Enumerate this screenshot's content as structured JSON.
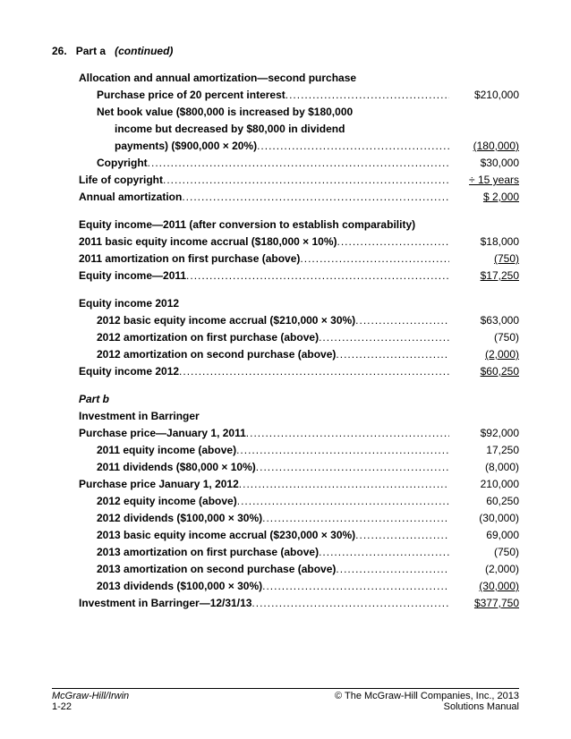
{
  "header": {
    "number": "26.",
    "title": "Part a",
    "cont": "(continued)"
  },
  "sec1": {
    "title": "Allocation and annual amortization—second purchase",
    "r1_label": "Purchase price of 20 percent interest",
    "r1_val": "$210,000",
    "r2a": "Net book value ($800,000 is increased by $180,000",
    "r2b": "income but decreased by $80,000 in dividend",
    "r2c": "payments) ($900,000 × 20%)",
    "r2_val": "(180,000)",
    "r3_label": "Copyright",
    "r3_val": "$30,000",
    "r4_label": "Life of copyright",
    "r4_val": "÷ 15 years",
    "r5_label": "Annual amortization",
    "r5_val": "$  2,000"
  },
  "sec2": {
    "title": "Equity income—2011 (after conversion to establish comparability)",
    "r1_label": "2011 basic equity income accrual ($180,000 × 10%)",
    "r1_val": "$18,000",
    "r2_label": "2011 amortization on first purchase (above)",
    "r2_val": "(750)",
    "r3_label": "Equity income—2011",
    "r3_val": "$17,250"
  },
  "sec3": {
    "title": "Equity income 2012",
    "r1_label": "2012 basic equity income accrual ($210,000 × 30%)",
    "r1_val": "$63,000",
    "r2_label": "2012 amortization on first purchase (above)",
    "r2_val": "(750)",
    "r3_label": "2012 amortization on second purchase (above)",
    "r3_val": "(2,000)",
    "r4_label": "Equity income 2012",
    "r4_val": "$60,250"
  },
  "sec4": {
    "partb": "Part b",
    "title": "Investment in Barringer",
    "r1_label": "Purchase price—January 1, 2011",
    "r1_val": "$92,000",
    "r2_label": "2011 equity income (above)",
    "r2_val": "17,250",
    "r3_label": "2011 dividends ($80,000 × 10%)",
    "r3_val": "(8,000)",
    "r4_label": "Purchase price January 1, 2012",
    "r4_val": "210,000",
    "r5_label": "2012 equity income (above)",
    "r5_val": "60,250",
    "r6_label": "2012 dividends ($100,000 × 30%)",
    "r6_val": "(30,000)",
    "r7_label": "2013 basic equity income accrual ($230,000 × 30%)",
    "r7_val": "69,000",
    "r8_label": "2013 amortization on first purchase (above)",
    "r8_val": "(750)",
    "r9_label": "2013 amortization on second purchase (above)",
    "r9_val": "(2,000)",
    "r10_label": "2013 dividends ($100,000 × 30%)",
    "r10_val": "(30,000)",
    "r11_label": "Investment in Barringer—12/31/13",
    "r11_val": "$377,750"
  },
  "footer": {
    "left": "McGraw-Hill/Irwin",
    "right1": "© The McGraw-Hill Companies, Inc., 2013",
    "left2": "1-22",
    "right2": "Solutions Manual"
  }
}
